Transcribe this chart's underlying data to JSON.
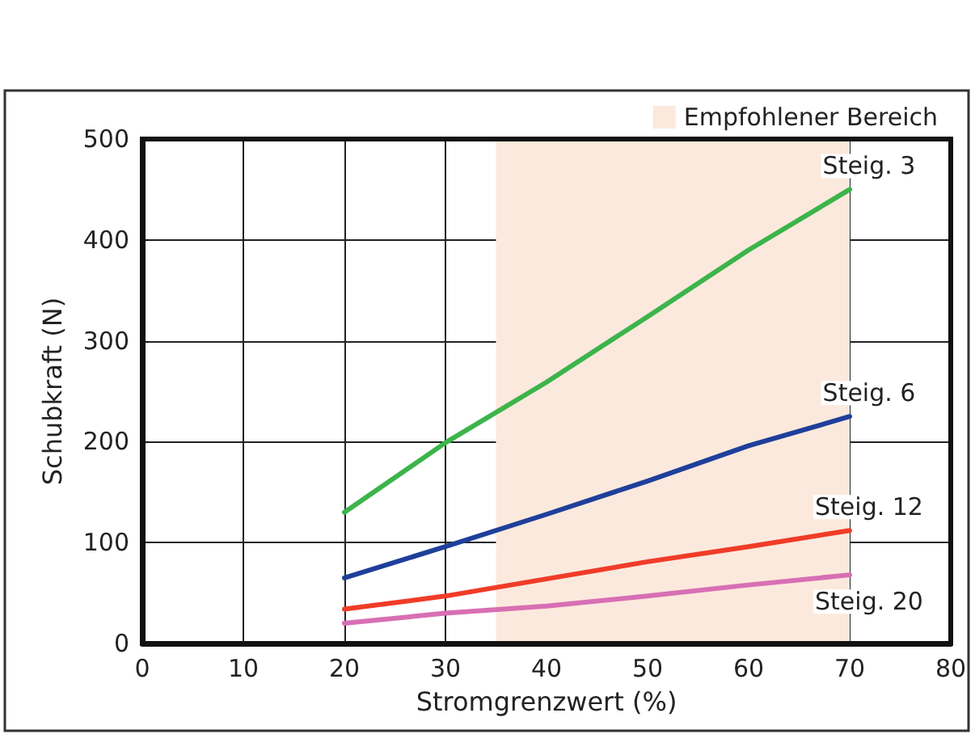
{
  "chart_data": {
    "type": "line",
    "xlabel": "Stromgrenzwert (%)",
    "ylabel": "Schubkraft (N)",
    "x": [
      20,
      30,
      40,
      50,
      60,
      70
    ],
    "series": [
      {
        "name": "Steig. 3",
        "color": "#3cb44b",
        "values": [
          130,
          199,
          259,
          324,
          390,
          450
        ]
      },
      {
        "name": "Steig. 6",
        "color": "#1f3f9a",
        "values": [
          65,
          96,
          128,
          161,
          196,
          225
        ]
      },
      {
        "name": "Steig. 12",
        "color": "#f03c28",
        "values": [
          34,
          47,
          64,
          81,
          96,
          112
        ]
      },
      {
        "name": "Steig. 20",
        "color": "#d86fb4",
        "values": [
          20,
          30,
          37,
          47,
          58,
          68
        ]
      }
    ],
    "xlim": [
      0,
      80
    ],
    "xticks": [
      0,
      10,
      20,
      30,
      40,
      50,
      60,
      70,
      80
    ],
    "ylim": [
      0,
      500
    ],
    "yticks": [
      0,
      100,
      200,
      300,
      400,
      500
    ],
    "bands": [
      {
        "axis": "x",
        "from": 35,
        "to": 70,
        "label": "Empfohlener Bereich",
        "color": "#fce9dd"
      }
    ],
    "grid": true,
    "legend": "top right",
    "marker": "none",
    "line_style": "solid"
  }
}
